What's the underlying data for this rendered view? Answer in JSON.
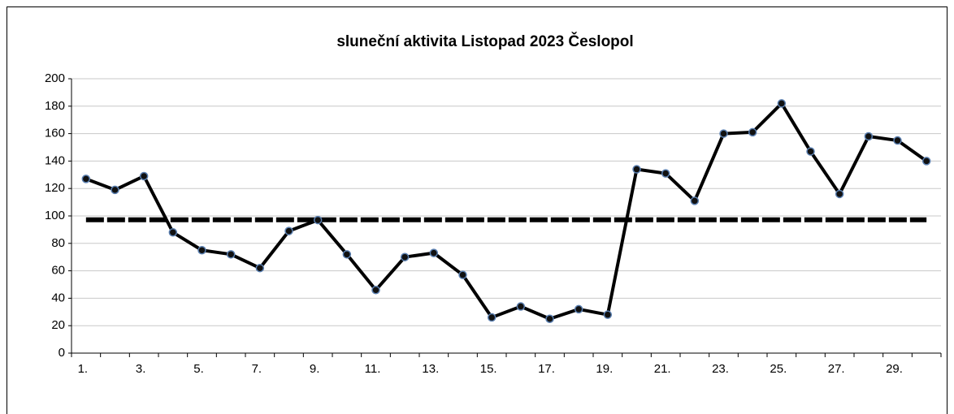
{
  "chart_data": {
    "type": "line",
    "title": "sluneční aktivita Listopad 2023 Česlopol",
    "categories": [
      "1.",
      null,
      "3.",
      null,
      "5.",
      null,
      "7.",
      null,
      "9.",
      null,
      "11.",
      null,
      "13.",
      null,
      "15.",
      null,
      "17.",
      null,
      "19.",
      null,
      "21.",
      null,
      "23.",
      null,
      "25.",
      null,
      "27.",
      null,
      "29.",
      null
    ],
    "series": [
      {
        "color": "#000000",
        "marker": true,
        "values": [
          127,
          119,
          129,
          88,
          75,
          72,
          62,
          89,
          97,
          72,
          46,
          70,
          73,
          57,
          26,
          34,
          25,
          32,
          28,
          134,
          131,
          111,
          160,
          161,
          182,
          147,
          116,
          158,
          155,
          140
        ]
      },
      {
        "color": "#000000",
        "dashed": true,
        "values": [
          97.2,
          97.2,
          97.2,
          97.2,
          97.2,
          97.2,
          97.2,
          97.2,
          97.2,
          97.2,
          97.2,
          97.2,
          97.2,
          97.2,
          97.2,
          97.2,
          97.2,
          97.2,
          97.2,
          97.2,
          97.2,
          97.2,
          97.2,
          97.2,
          97.2,
          97.2,
          97.2,
          97.2,
          97.2,
          97.2
        ]
      }
    ],
    "ylim": [
      0,
      200
    ],
    "yticks": [
      0,
      20,
      40,
      60,
      80,
      100,
      120,
      140,
      160,
      180,
      200
    ],
    "grid": true
  }
}
